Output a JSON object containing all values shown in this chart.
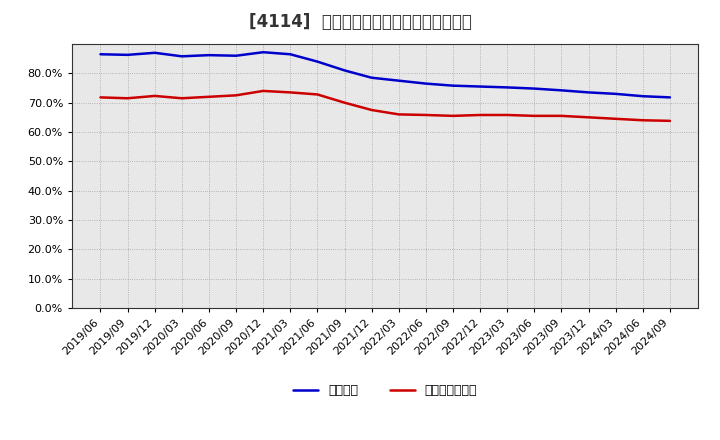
{
  "title": "[4114]  固定比率、固定長期適合率の推移",
  "x_labels": [
    "2019/06",
    "2019/09",
    "2019/12",
    "2020/03",
    "2020/06",
    "2020/09",
    "2020/12",
    "2021/03",
    "2021/06",
    "2021/09",
    "2021/12",
    "2022/03",
    "2022/06",
    "2022/09",
    "2022/12",
    "2023/03",
    "2023/06",
    "2023/09",
    "2023/12",
    "2024/03",
    "2024/06",
    "2024/09"
  ],
  "fixed_ratio": [
    86.5,
    86.3,
    87.0,
    85.8,
    86.2,
    86.0,
    87.2,
    86.5,
    84.0,
    81.0,
    78.5,
    77.5,
    76.5,
    75.8,
    75.5,
    75.2,
    74.8,
    74.2,
    73.5,
    73.0,
    72.2,
    71.8
  ],
  "fixed_long_ratio": [
    71.8,
    71.5,
    72.3,
    71.5,
    72.0,
    72.5,
    74.0,
    73.5,
    72.8,
    70.0,
    67.5,
    66.0,
    65.8,
    65.5,
    65.8,
    65.8,
    65.5,
    65.5,
    65.0,
    64.5,
    64.0,
    63.8
  ],
  "line1_color": "#0000cc",
  "line2_color": "#cc0000",
  "line_width": 1.8,
  "ylim_min": 0,
  "ylim_max": 90,
  "yticks": [
    0,
    10,
    20,
    30,
    40,
    50,
    60,
    70,
    80
  ],
  "legend1": "固定比率",
  "legend2": "固定長期適合率",
  "bg_color": "#ffffff",
  "plot_bg_color": "#e8e8e8",
  "grid_color": "#888888",
  "title_fontsize": 12,
  "tick_fontsize": 8,
  "legend_fontsize": 9,
  "title_color": "#333333"
}
